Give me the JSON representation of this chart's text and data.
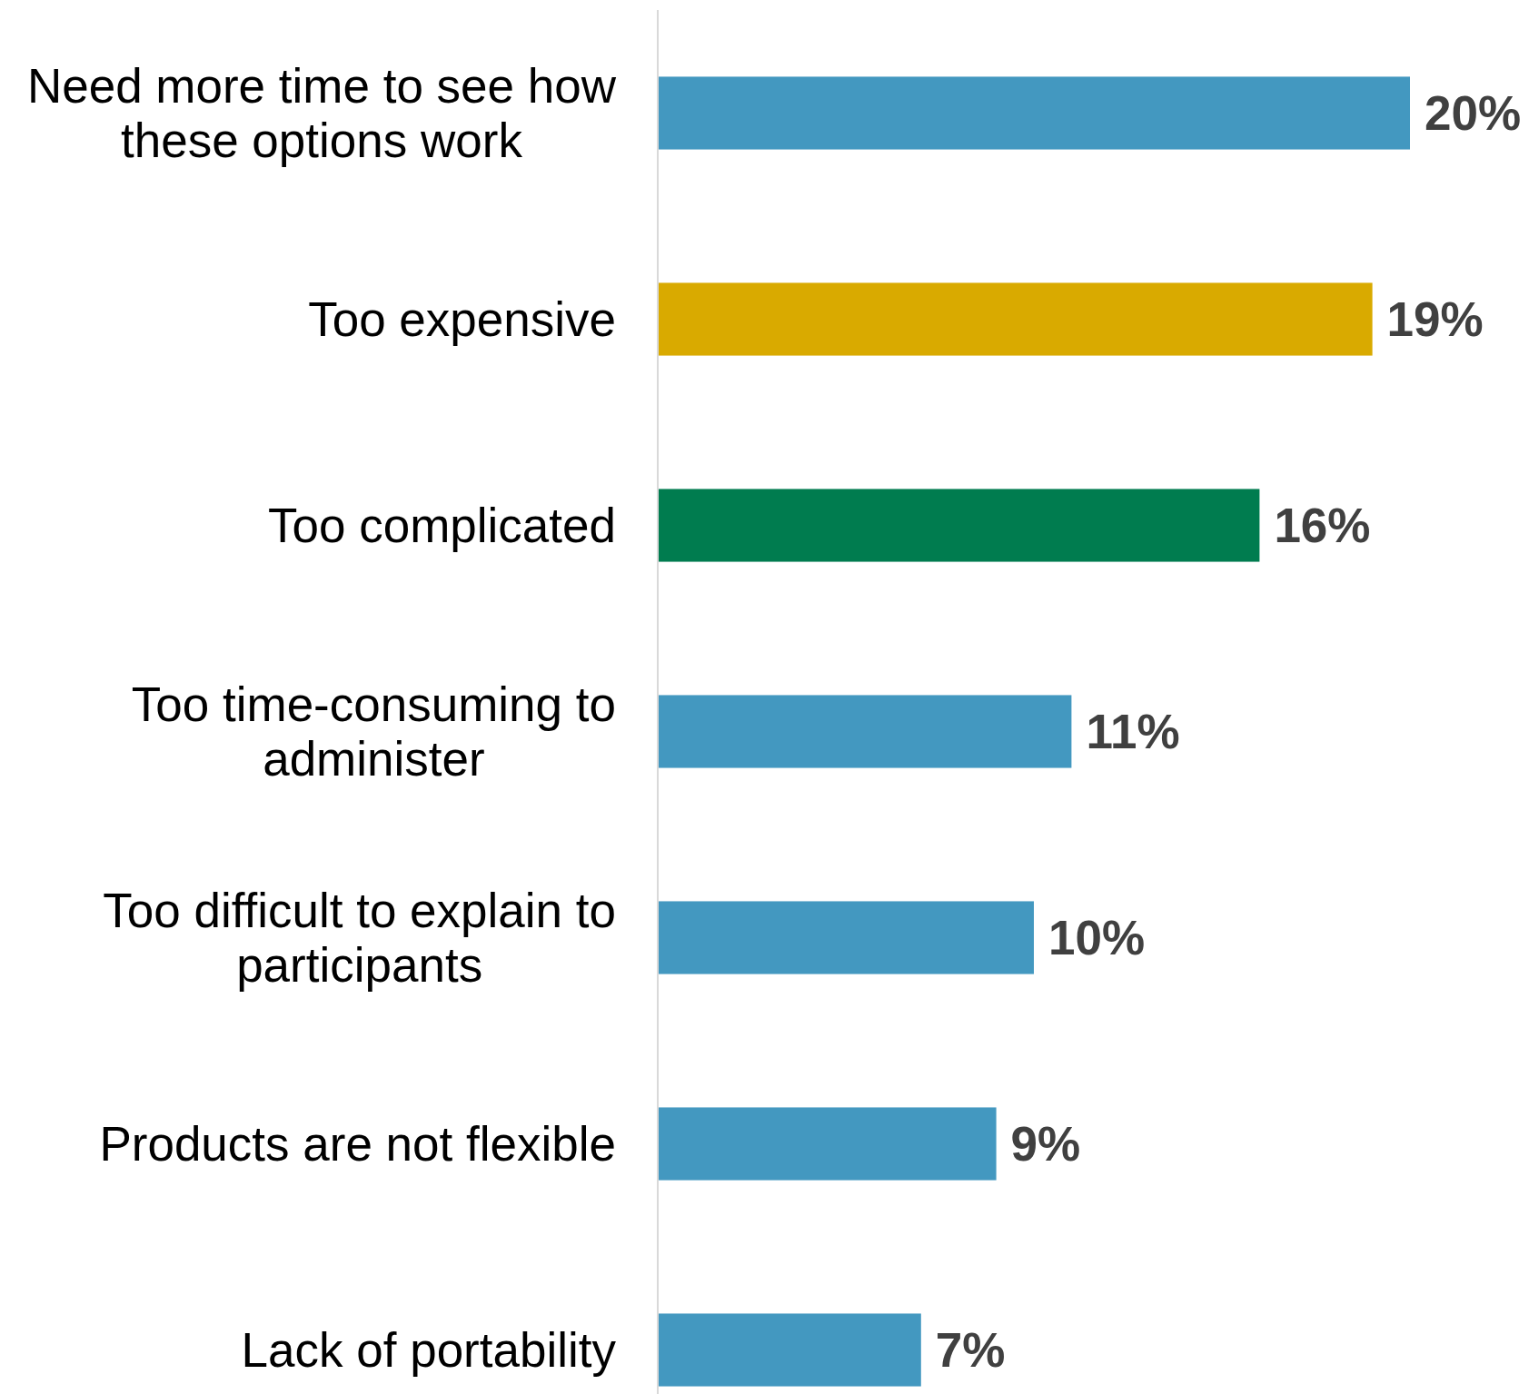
{
  "chart_data": {
    "type": "bar",
    "orientation": "horizontal",
    "categories": [
      "Need more time to see how these options work",
      "Too expensive",
      "Too complicated",
      "Too time-consuming to administer",
      "Too difficult to explain to participants",
      "Products are not flexible",
      "Lack of portability"
    ],
    "values": [
      20,
      19,
      16,
      11,
      10,
      9,
      7
    ],
    "colors": [
      "#4398c0",
      "#d9aa00",
      "#007c4f",
      "#4398c0",
      "#4398c0",
      "#4398c0",
      "#4398c0"
    ],
    "value_labels": [
      "20%",
      "19%",
      "16%",
      "11%",
      "10%",
      "9%",
      "7%"
    ]
  }
}
